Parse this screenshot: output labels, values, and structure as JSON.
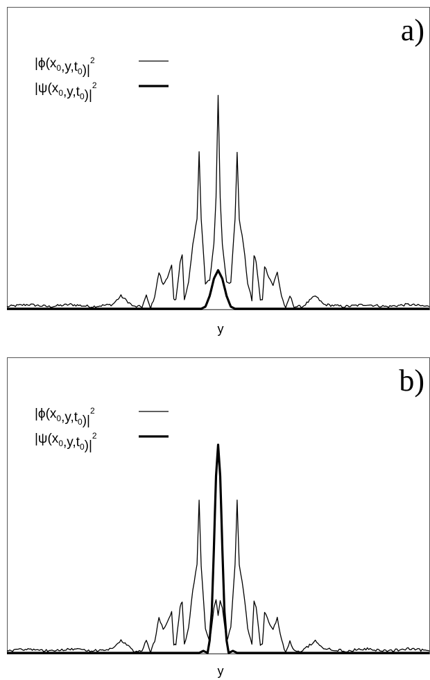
{
  "chart_data": [
    {
      "type": "line",
      "panel_label": "a)",
      "xlabel": "y",
      "ylabel": "",
      "xlim": [
        -1,
        1
      ],
      "ylim": [
        0,
        1
      ],
      "grid": false,
      "legend_placement": "top-left",
      "legend": [
        {
          "func": "ϕ",
          "args": [
            "x",
            "0",
            "y",
            "t",
            "0"
          ],
          "exp": "2",
          "style": "thin"
        },
        {
          "func": "ψ",
          "args": [
            "x",
            "0",
            "y",
            "t",
            "0"
          ],
          "exp": "2",
          "style": "thick"
        }
      ],
      "series": [
        {
          "style": "thin",
          "x": [
            -1.0,
            -0.9,
            -0.8,
            -0.7,
            -0.6,
            -0.5,
            -0.46,
            -0.4,
            -0.36,
            -0.34,
            -0.32,
            -0.3,
            -0.28,
            -0.26,
            -0.24,
            -0.22,
            -0.21,
            -0.2,
            -0.18,
            -0.17,
            -0.16,
            -0.14,
            -0.12,
            -0.1,
            -0.09,
            -0.08,
            -0.06,
            -0.04,
            -0.02,
            -0.01,
            0.0,
            0.01,
            0.02,
            0.04,
            0.06,
            0.08,
            0.09,
            0.1,
            0.12,
            0.14,
            0.16,
            0.17,
            0.18,
            0.2,
            0.21,
            0.22,
            0.24,
            0.26,
            0.28,
            0.3,
            0.32,
            0.34,
            0.36,
            0.4,
            0.46,
            0.5,
            0.6,
            0.7,
            0.8,
            0.9,
            1.0
          ],
          "y": [
            0.01,
            0.02,
            0.01,
            0.02,
            0.01,
            0.02,
            0.06,
            0.01,
            0.01,
            0.06,
            0.0,
            0.06,
            0.17,
            0.11,
            0.15,
            0.2,
            0.04,
            0.04,
            0.22,
            0.25,
            0.04,
            0.12,
            0.3,
            0.42,
            0.73,
            0.42,
            0.12,
            0.13,
            0.3,
            0.52,
            1.0,
            0.52,
            0.3,
            0.13,
            0.12,
            0.42,
            0.73,
            0.42,
            0.3,
            0.12,
            0.04,
            0.25,
            0.22,
            0.04,
            0.04,
            0.2,
            0.15,
            0.11,
            0.17,
            0.06,
            0.0,
            0.06,
            0.01,
            0.01,
            0.06,
            0.02,
            0.01,
            0.02,
            0.01,
            0.02,
            0.01
          ]
        },
        {
          "style": "thick",
          "x": [
            -1.0,
            -0.12,
            -0.08,
            -0.06,
            -0.04,
            -0.02,
            0.0,
            0.02,
            0.04,
            0.06,
            0.08,
            0.12,
            1.0
          ],
          "y": [
            0.0,
            0.0,
            0.0,
            0.01,
            0.06,
            0.14,
            0.18,
            0.14,
            0.06,
            0.01,
            0.0,
            0.0,
            0.0
          ]
        }
      ]
    },
    {
      "type": "line",
      "panel_label": "b)",
      "xlabel": "y",
      "ylabel": "",
      "xlim": [
        -1,
        1
      ],
      "ylim": [
        0,
        1
      ],
      "grid": false,
      "legend_placement": "top-left",
      "legend": [
        {
          "func": "ϕ",
          "args": [
            "x",
            "0",
            "y",
            "t",
            "0"
          ],
          "exp": "2",
          "style": "thin"
        },
        {
          "func": "ψ",
          "args": [
            "x",
            "0",
            "y",
            "t",
            "0"
          ],
          "exp": "2",
          "style": "thick"
        }
      ],
      "series": [
        {
          "style": "thin",
          "x": [
            -1.0,
            -0.9,
            -0.8,
            -0.7,
            -0.6,
            -0.5,
            -0.46,
            -0.4,
            -0.36,
            -0.34,
            -0.32,
            -0.3,
            -0.28,
            -0.26,
            -0.24,
            -0.22,
            -0.21,
            -0.2,
            -0.18,
            -0.17,
            -0.16,
            -0.14,
            -0.12,
            -0.1,
            -0.09,
            -0.08,
            -0.06,
            -0.04,
            -0.02,
            -0.01,
            0.0,
            0.01,
            0.02,
            0.04,
            0.06,
            0.08,
            0.09,
            0.1,
            0.12,
            0.14,
            0.16,
            0.17,
            0.18,
            0.2,
            0.21,
            0.22,
            0.24,
            0.26,
            0.28,
            0.3,
            0.32,
            0.34,
            0.36,
            0.4,
            0.46,
            0.5,
            0.6,
            0.7,
            0.8,
            0.9,
            1.0
          ],
          "y": [
            0.01,
            0.02,
            0.01,
            0.02,
            0.01,
            0.02,
            0.06,
            0.01,
            0.01,
            0.06,
            0.0,
            0.06,
            0.17,
            0.11,
            0.15,
            0.2,
            0.04,
            0.04,
            0.22,
            0.25,
            0.04,
            0.12,
            0.3,
            0.42,
            0.73,
            0.42,
            0.12,
            0.05,
            0.22,
            0.25,
            0.18,
            0.25,
            0.22,
            0.05,
            0.12,
            0.42,
            0.73,
            0.42,
            0.3,
            0.12,
            0.04,
            0.25,
            0.22,
            0.04,
            0.04,
            0.2,
            0.15,
            0.11,
            0.17,
            0.06,
            0.0,
            0.06,
            0.01,
            0.01,
            0.06,
            0.02,
            0.01,
            0.02,
            0.01,
            0.02,
            0.01
          ]
        },
        {
          "style": "thick",
          "x": [
            -1.0,
            -0.12,
            -0.09,
            -0.07,
            -0.05,
            -0.04,
            -0.03,
            -0.02,
            -0.01,
            0.0,
            0.01,
            0.02,
            0.03,
            0.04,
            0.05,
            0.07,
            0.09,
            0.12,
            1.0
          ],
          "y": [
            0.0,
            0.0,
            0.0,
            0.01,
            0.0,
            0.06,
            0.2,
            0.5,
            0.85,
            1.0,
            0.85,
            0.5,
            0.2,
            0.06,
            0.0,
            0.01,
            0.0,
            0.0,
            0.0
          ]
        }
      ]
    }
  ]
}
